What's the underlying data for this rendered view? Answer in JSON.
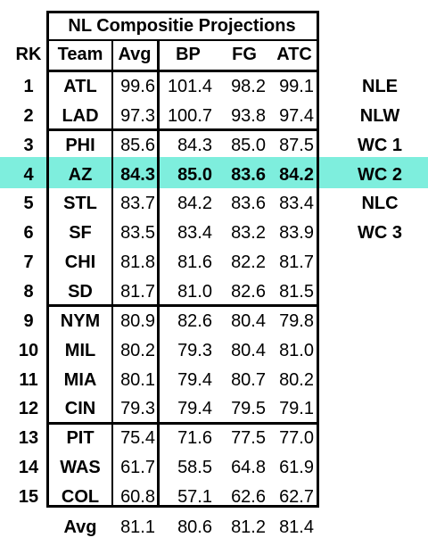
{
  "title": "NL Compositie Projections",
  "columns": {
    "rk": "RK",
    "team": "Team",
    "avg": "Avg",
    "bp": "BP",
    "fg": "FG",
    "atc": "ATC"
  },
  "rows": [
    {
      "rk": "1",
      "team": "ATL",
      "avg": "99.6",
      "bp": "101.4",
      "fg": "98.2",
      "atc": "99.1",
      "tag": "NLE"
    },
    {
      "rk": "2",
      "team": "LAD",
      "avg": "97.3",
      "bp": "100.7",
      "fg": "93.8",
      "atc": "97.4",
      "tag": "NLW"
    },
    {
      "rk": "3",
      "team": "PHI",
      "avg": "85.6",
      "bp": "84.3",
      "fg": "85.0",
      "atc": "87.5",
      "tag": "WC 1"
    },
    {
      "rk": "4",
      "team": "AZ",
      "avg": "84.3",
      "bp": "85.0",
      "fg": "83.6",
      "atc": "84.2",
      "tag": "WC 2"
    },
    {
      "rk": "5",
      "team": "STL",
      "avg": "83.7",
      "bp": "84.2",
      "fg": "83.6",
      "atc": "83.4",
      "tag": "NLC"
    },
    {
      "rk": "6",
      "team": "SF",
      "avg": "83.5",
      "bp": "83.4",
      "fg": "83.2",
      "atc": "83.9",
      "tag": "WC 3"
    },
    {
      "rk": "7",
      "team": "CHI",
      "avg": "81.8",
      "bp": "81.6",
      "fg": "82.2",
      "atc": "81.7",
      "tag": ""
    },
    {
      "rk": "8",
      "team": "SD",
      "avg": "81.7",
      "bp": "81.0",
      "fg": "82.6",
      "atc": "81.5",
      "tag": ""
    },
    {
      "rk": "9",
      "team": "NYM",
      "avg": "80.9",
      "bp": "82.6",
      "fg": "80.4",
      "atc": "79.8",
      "tag": ""
    },
    {
      "rk": "10",
      "team": "MIL",
      "avg": "80.2",
      "bp": "79.3",
      "fg": "80.4",
      "atc": "81.0",
      "tag": ""
    },
    {
      "rk": "11",
      "team": "MIA",
      "avg": "80.1",
      "bp": "79.4",
      "fg": "80.7",
      "atc": "80.2",
      "tag": ""
    },
    {
      "rk": "12",
      "team": "CIN",
      "avg": "79.3",
      "bp": "79.4",
      "fg": "79.5",
      "atc": "79.1",
      "tag": ""
    },
    {
      "rk": "13",
      "team": "PIT",
      "avg": "75.4",
      "bp": "71.6",
      "fg": "77.5",
      "atc": "77.0",
      "tag": ""
    },
    {
      "rk": "14",
      "team": "WAS",
      "avg": "61.7",
      "bp": "58.5",
      "fg": "64.8",
      "atc": "61.9",
      "tag": ""
    },
    {
      "rk": "15",
      "team": "COL",
      "avg": "60.8",
      "bp": "57.1",
      "fg": "62.6",
      "atc": "62.7",
      "tag": ""
    }
  ],
  "footer": {
    "label": "Avg",
    "avg": "81.1",
    "bp": "80.6",
    "fg": "81.2",
    "atc": "81.4"
  },
  "highlight_row": 4,
  "highlight_color": "#7eeedd"
}
